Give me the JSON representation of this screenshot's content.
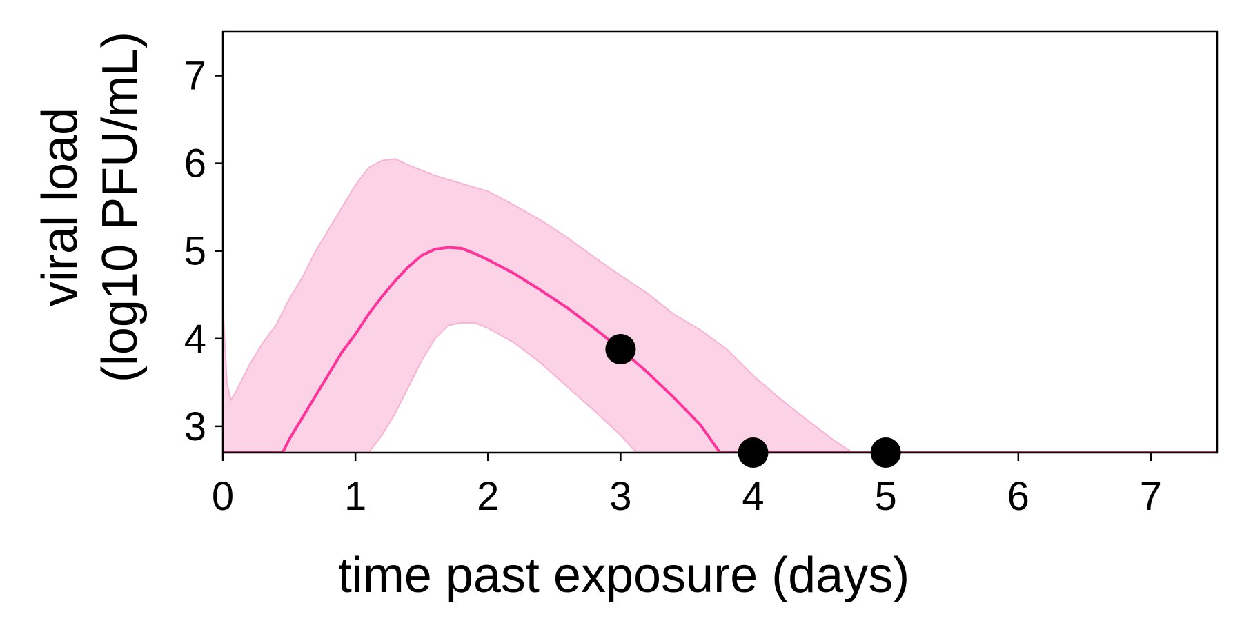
{
  "chart_data": {
    "type": "line",
    "xlabel": "time past exposure (days)",
    "ylabel_line1": "viral load",
    "ylabel_line2": "(log10 PFU/mL)",
    "xlim": [
      0,
      7.5
    ],
    "ylim": [
      2.7,
      7.5
    ],
    "xticks": [
      0,
      1,
      2,
      3,
      4,
      5,
      6,
      7
    ],
    "yticks": [
      3,
      4,
      5,
      6,
      7
    ],
    "grid": false,
    "colors": {
      "line": "#ff3399",
      "band": "#fcd3e6",
      "band_edge": "#f7b3d3",
      "points": "#000000",
      "axes": "#000000"
    },
    "series": [
      {
        "kind": "median-line",
        "x": [
          0,
          0.45,
          0.5,
          0.6,
          0.7,
          0.8,
          0.9,
          1.0,
          1.1,
          1.2,
          1.3,
          1.4,
          1.5,
          1.6,
          1.7,
          1.8,
          1.9,
          2.0,
          2.2,
          2.4,
          2.6,
          2.8,
          3.0,
          3.2,
          3.4,
          3.6,
          3.75,
          7.5
        ],
        "y": [
          2.7,
          2.7,
          2.85,
          3.1,
          3.35,
          3.6,
          3.85,
          4.05,
          4.28,
          4.48,
          4.66,
          4.82,
          4.95,
          5.02,
          5.04,
          5.03,
          4.97,
          4.9,
          4.74,
          4.55,
          4.35,
          4.12,
          3.88,
          3.62,
          3.33,
          3.02,
          2.7,
          2.7
        ]
      },
      {
        "kind": "band-upper",
        "x": [
          0,
          0.03,
          0.06,
          0.1,
          0.2,
          0.3,
          0.4,
          0.5,
          0.6,
          0.7,
          0.8,
          0.9,
          1.0,
          1.1,
          1.2,
          1.3,
          1.4,
          1.5,
          1.6,
          1.8,
          2.0,
          2.2,
          2.4,
          2.6,
          2.8,
          3.0,
          3.2,
          3.4,
          3.6,
          3.8,
          4.0,
          4.2,
          4.4,
          4.6,
          4.75,
          7.5
        ],
        "y": [
          4.4,
          3.5,
          3.3,
          3.4,
          3.7,
          3.95,
          4.15,
          4.45,
          4.7,
          5.0,
          5.25,
          5.5,
          5.75,
          5.95,
          6.03,
          6.05,
          5.98,
          5.92,
          5.86,
          5.77,
          5.68,
          5.52,
          5.35,
          5.15,
          4.93,
          4.72,
          4.52,
          4.28,
          4.1,
          3.88,
          3.58,
          3.32,
          3.08,
          2.85,
          2.7,
          2.7
        ]
      },
      {
        "kind": "band-lower",
        "x": [
          0,
          1.1,
          1.2,
          1.3,
          1.4,
          1.5,
          1.6,
          1.7,
          1.8,
          1.9,
          2.0,
          2.2,
          2.4,
          2.6,
          2.8,
          3.0,
          3.12,
          7.5
        ],
        "y": [
          2.7,
          2.7,
          2.9,
          3.15,
          3.45,
          3.75,
          4.0,
          4.15,
          4.18,
          4.18,
          4.12,
          3.95,
          3.72,
          3.45,
          3.18,
          2.9,
          2.7,
          2.7
        ]
      },
      {
        "kind": "observations",
        "x": [
          3,
          4,
          5
        ],
        "y": [
          3.88,
          2.7,
          2.7
        ]
      }
    ]
  }
}
